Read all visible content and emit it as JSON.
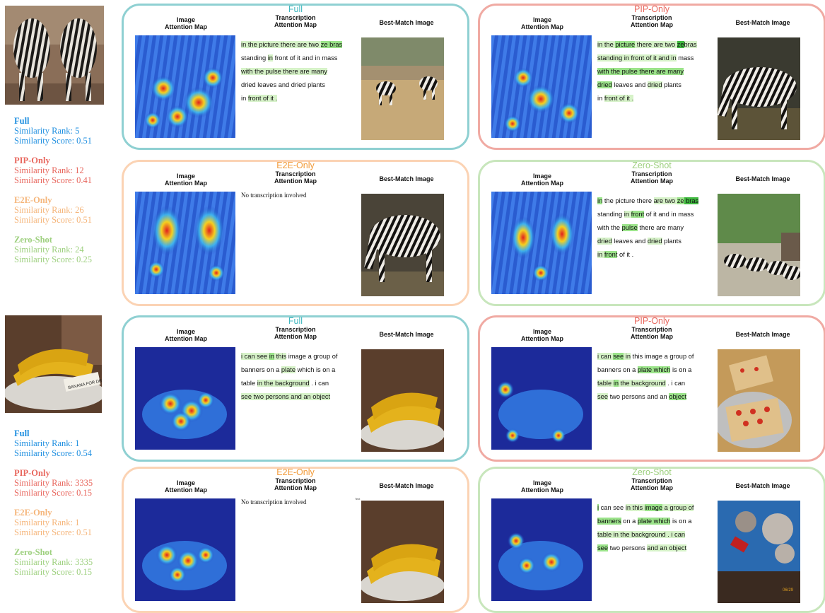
{
  "rows": [
    {
      "stats": [
        {
          "name": "Full",
          "rank": "Similarity Rank: 5",
          "score": "Similarity Score: 0.51"
        },
        {
          "name": "PIP-Only",
          "rank": "Similarity Rank: 12",
          "score": "Similarity Score: 0.41"
        },
        {
          "name": "E2E-Only",
          "rank": "Similarity Rank: 26",
          "score": "Similarity Score: 0.51"
        },
        {
          "name": "Zero-Shot",
          "rank": "Similarity Rank: 24",
          "score": "Similarity Score: 0.25"
        }
      ],
      "panels": [
        {
          "title": "Full",
          "transcription": "in the picture there are two ze bras standing in front of it and in mass with the pulse there are many dried leaves and dried plants in front of it ."
        },
        {
          "title": "PIP-Only",
          "transcription": "in the picture there are two ze bras standing in front of it and in mass with the pulse there are many dried leaves and dried plants in front of it ."
        },
        {
          "title": "E2E-Only",
          "transcription": "No transcription involved"
        },
        {
          "title": "Zero-Shot",
          "transcription": "in the picture there are two ze bras standing in front of it and in mass with the pulse there are many dried leaves and dried plants in front of it ."
        }
      ]
    },
    {
      "stats": [
        {
          "name": "Full",
          "rank": "Similarity Rank: 1",
          "score": "Similarity Score: 0.54"
        },
        {
          "name": "PIP-Only",
          "rank": "Similarity Rank: 3335",
          "score": "Similarity Score: 0.15"
        },
        {
          "name": "E2E-Only",
          "rank": "Similarity Rank: 1",
          "score": "Similarity Score: 0.51"
        },
        {
          "name": "Zero-Shot",
          "rank": "Similarity Rank: 3335",
          "score": "Similarity Score: 0.15"
        }
      ],
      "panels": [
        {
          "title": "Full",
          "transcription": "i can see in this image a group of banners on a plate which is on a table in the background . i can see two persons and an object"
        },
        {
          "title": "PIP-Only",
          "transcription": "i can see in this image a group of banners on a plate which is on a table in the background . i can see two persons and an object"
        },
        {
          "title": "E2E-Only",
          "transcription": "No transcription involved",
          "tiny": "Text"
        },
        {
          "title": "Zero-Shot",
          "transcription": "i can see in this image a group of banners on a plate which is on a table in the background . i can see two persons and an object"
        }
      ]
    }
  ],
  "headers": {
    "image_line1": "Image",
    "image_line2": "Attention Map",
    "trans_line1": "Transcription",
    "trans_line2": "Attention Map",
    "best": "Best-Match Image"
  },
  "banana_sign": "BANANA FOR DRINK",
  "clock_text": "06/29"
}
